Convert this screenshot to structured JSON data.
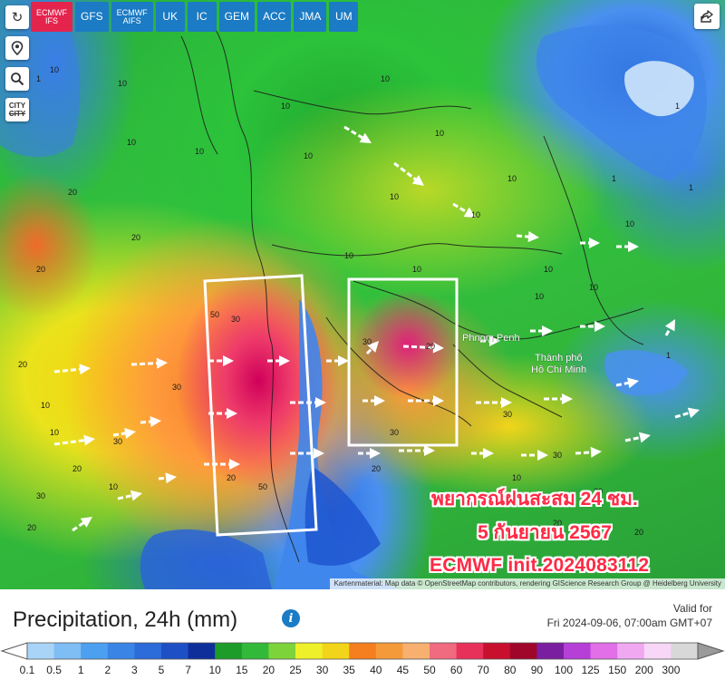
{
  "models": {
    "tabs": [
      {
        "label": "ECMWF\nIFS",
        "active": true
      },
      {
        "label": "GFS",
        "active": false
      },
      {
        "label": "ECMWF\nAIFS",
        "active": false
      },
      {
        "label": "UK",
        "active": false
      },
      {
        "label": "IC",
        "active": false
      },
      {
        "label": "GEM",
        "active": false
      },
      {
        "label": "ACC",
        "active": false
      },
      {
        "label": "JMA",
        "active": false
      },
      {
        "label": "UM",
        "active": false
      }
    ]
  },
  "toolbar": {
    "refresh_icon": "refresh-icon",
    "location_icon": "map-pin-icon",
    "zoom_icon": "magnifier-icon",
    "city_top": "CITY",
    "city_bottom": "CITY",
    "share_icon": "share-icon"
  },
  "map": {
    "place_labels": [
      "Phnom Penh",
      "Thành phố",
      "Hồ Chí Minh"
    ],
    "contour_values": [
      "10",
      "10",
      "10",
      "10",
      "10",
      "10",
      "10",
      "10",
      "10",
      "10",
      "10",
      "10",
      "10",
      "10",
      "10",
      "10",
      "10",
      "10",
      "20",
      "20",
      "20",
      "20",
      "20",
      "20",
      "20",
      "20",
      "20",
      "20",
      "30",
      "30",
      "30",
      "30",
      "30",
      "30",
      "30",
      "30",
      "30",
      "50",
      "50",
      "20",
      "1",
      "1",
      "1",
      "1",
      "1",
      "10",
      "10",
      "10"
    ],
    "captions": {
      "line1": "พยากรณ์ฝนสะสม 24 ชม.",
      "line2": "5 กันยายน 2567",
      "line3": "ECMWF init.2024083112"
    },
    "attribution": "Kartenmaterial: Map data © OpenStreetMap contributors, rendering GIScience Research Group @ Heidelberg University"
  },
  "legend": {
    "title": "Precipitation, 24h (mm)",
    "info_icon": "info-icon",
    "valid_label": "Valid for",
    "valid_time": "Fri 2024-09-06, 07:00am GMT+07",
    "scale": [
      {
        "label": "0.1",
        "color": "#a9d4f7"
      },
      {
        "label": "0.5",
        "color": "#7fbdf5"
      },
      {
        "label": "1",
        "color": "#4d9ff0"
      },
      {
        "label": "2",
        "color": "#3a84e6"
      },
      {
        "label": "3",
        "color": "#2c6bda"
      },
      {
        "label": "5",
        "color": "#1f4fc4"
      },
      {
        "label": "7",
        "color": "#0e2f9a"
      },
      {
        "label": "10",
        "color": "#1e9c2a"
      },
      {
        "label": "15",
        "color": "#33b93a"
      },
      {
        "label": "20",
        "color": "#7dd33a"
      },
      {
        "label": "25",
        "color": "#eef02a"
      },
      {
        "label": "30",
        "color": "#f2d51a"
      },
      {
        "label": "35",
        "color": "#f57f1e"
      },
      {
        "label": "40",
        "color": "#f59a3a"
      },
      {
        "label": "45",
        "color": "#f7b070"
      },
      {
        "label": "50",
        "color": "#f06a80"
      },
      {
        "label": "60",
        "color": "#e8315a"
      },
      {
        "label": "70",
        "color": "#c8102e"
      },
      {
        "label": "80",
        "color": "#a0062a"
      },
      {
        "label": "90",
        "color": "#7a1fa0"
      },
      {
        "label": "100",
        "color": "#b63fd8"
      },
      {
        "label": "125",
        "color": "#e26ee8"
      },
      {
        "label": "150",
        "color": "#f0a8f0"
      },
      {
        "label": "200",
        "color": "#f7d6f7"
      },
      {
        "label": "300",
        "color": "#d8d8d8"
      }
    ]
  }
}
